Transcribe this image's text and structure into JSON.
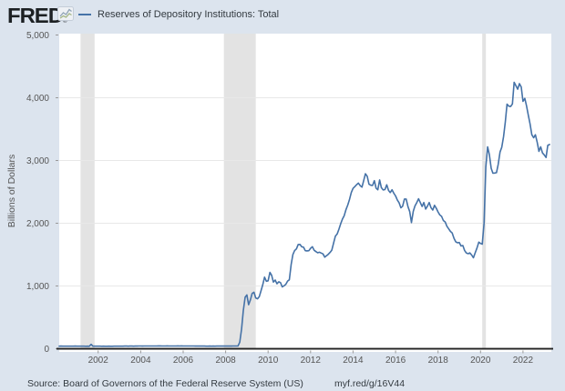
{
  "header": {
    "logo_text": "FRED",
    "registered_mark": "®",
    "legend_label": "Reserves of Depository Institutions: Total"
  },
  "footer": {
    "source_text": "Source: Board of Governors of the Federal Reserve System (US)",
    "short_url": "myf.red/g/16V44"
  },
  "colors": {
    "page_background": "#dce4ee",
    "plot_background": "#ffffff",
    "recession_band": "#e3e3e3",
    "gridline": "#e8e8e8",
    "line": "#4572a7",
    "axis_line": "#222222",
    "tick_text": "#555555",
    "footer_text": "#333a40"
  },
  "chart_data": {
    "type": "line",
    "title": "Reserves of Depository Institutions: Total",
    "xlabel": "",
    "ylabel": "Billions of Dollars",
    "ylim": [
      0,
      5000
    ],
    "yticks": [
      0,
      1000,
      2000,
      3000,
      4000,
      5000
    ],
    "ytick_labels": [
      "0",
      "1,000",
      "2,000",
      "3,000",
      "4,000",
      "5,000"
    ],
    "xticks": [
      2002,
      2004,
      2006,
      2008,
      2010,
      2012,
      2014,
      2016,
      2018,
      2020,
      2022
    ],
    "xlim": [
      2000.1667,
      2023.3333
    ],
    "grid": "horizontal",
    "legend_position": "top-left-header",
    "recession_bands": [
      {
        "start": 2001.17,
        "end": 2001.83
      },
      {
        "start": 2007.92,
        "end": 2009.42
      },
      {
        "start": 2020.08,
        "end": 2020.25
      }
    ],
    "series": [
      {
        "name": "Reserves of Depository Institutions: Total",
        "units": "Billions of Dollars",
        "frequency": "monthly",
        "start": "2000-03",
        "end": "2023-04",
        "values": [
          41,
          42,
          41,
          40,
          40,
          40,
          41,
          40,
          41,
          42,
          41,
          41,
          40,
          40,
          40,
          39,
          40,
          39,
          70,
          41,
          40,
          41,
          40,
          40,
          39,
          40,
          39,
          39,
          40,
          39,
          39,
          40,
          40,
          41,
          41,
          40,
          41,
          42,
          42,
          41,
          42,
          42,
          41,
          42,
          42,
          43,
          43,
          42,
          43,
          44,
          43,
          43,
          44,
          43,
          44,
          44,
          45,
          45,
          44,
          44,
          44,
          45,
          44,
          44,
          44,
          44,
          44,
          45,
          44,
          45,
          44,
          43,
          43,
          44,
          43,
          43,
          43,
          42,
          43,
          42,
          42,
          43,
          42,
          41,
          41,
          42,
          41,
          42,
          41,
          42,
          42,
          42,
          42,
          43,
          42,
          42,
          42,
          42,
          43,
          43,
          43,
          45,
          104,
          315,
          609,
          821,
          858,
          701,
          780,
          881,
          900,
          810,
          796,
          829,
          922,
          1023,
          1141,
          1075,
          1083,
          1218,
          1169,
          1062,
          1094,
          1035,
          1066,
          1053,
          986,
          1003,
          1024,
          1078,
          1099,
          1342,
          1501,
          1564,
          1591,
          1661,
          1663,
          1625,
          1617,
          1562,
          1559,
          1563,
          1600,
          1626,
          1570,
          1548,
          1529,
          1538,
          1524,
          1511,
          1459,
          1483,
          1506,
          1535,
          1571,
          1686,
          1793,
          1829,
          1905,
          1990,
          2066,
          2121,
          2219,
          2290,
          2382,
          2490,
          2555,
          2584,
          2615,
          2639,
          2600,
          2575,
          2679,
          2789,
          2746,
          2622,
          2606,
          2602,
          2678,
          2559,
          2533,
          2690,
          2566,
          2531,
          2536,
          2613,
          2524,
          2489,
          2534,
          2479,
          2435,
          2371,
          2327,
          2246,
          2271,
          2385,
          2386,
          2264,
          2185,
          2010,
          2190,
          2277,
          2330,
          2390,
          2328,
          2266,
          2330,
          2226,
          2271,
          2331,
          2250,
          2210,
          2285,
          2240,
          2180,
          2134,
          2109,
          2043,
          2021,
          1952,
          1912,
          1870,
          1845,
          1760,
          1705,
          1688,
          1693,
          1638,
          1645,
          1566,
          1524,
          1514,
          1527,
          1493,
          1449,
          1531,
          1605,
          1698,
          1677,
          1667,
          2001,
          2894,
          3218,
          3093,
          2875,
          2797,
          2800,
          2806,
          2938,
          3135,
          3210,
          3382,
          3615,
          3899,
          3865,
          3861,
          3901,
          4246,
          4190,
          4136,
          4225,
          4170,
          3942,
          3990,
          3870,
          3725,
          3580,
          3410,
          3362,
          3410,
          3290,
          3145,
          3217,
          3120,
          3090,
          3048,
          3240,
          3255
        ]
      }
    ]
  }
}
